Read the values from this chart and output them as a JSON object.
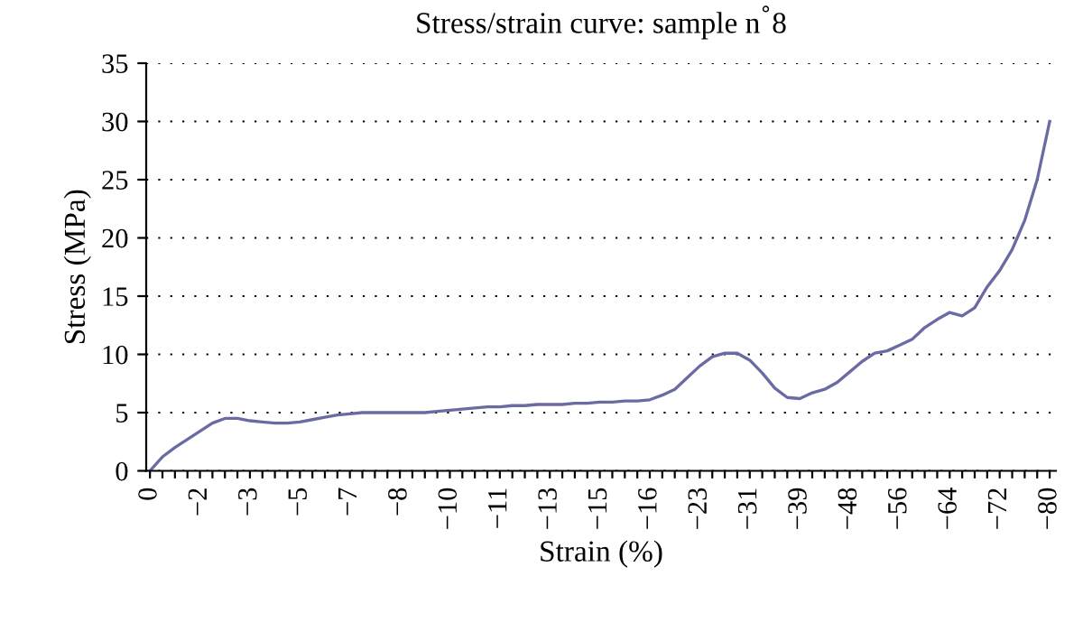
{
  "chart_data": {
    "type": "line",
    "title": "Stress/strain curve: sample n$^{°}$8",
    "xlabel": "Strain (%)",
    "ylabel": "Stress (MPa)",
    "categories": [
      "0",
      null,
      null,
      null,
      "−2",
      null,
      null,
      null,
      "−3",
      null,
      null,
      null,
      "−5",
      null,
      null,
      null,
      "−7",
      null,
      null,
      null,
      "−8",
      null,
      null,
      null,
      "−10",
      null,
      null,
      null,
      "−11",
      null,
      null,
      null,
      "−13",
      null,
      null,
      null,
      "−15",
      null,
      null,
      null,
      "−16",
      null,
      null,
      null,
      "−23",
      null,
      null,
      null,
      "−31",
      null,
      null,
      null,
      "−39",
      null,
      null,
      null,
      "−48",
      null,
      null,
      null,
      "−56",
      null,
      null,
      null,
      "−64",
      null,
      null,
      null,
      "−72",
      null,
      null,
      null,
      "−80"
    ],
    "series": [
      {
        "color": "#6b6ba3",
        "values": [
          0,
          1.2,
          2.0,
          2.7,
          3.4,
          4.1,
          4.5,
          4.5,
          4.3,
          4.2,
          4.1,
          4.1,
          4.2,
          4.4,
          4.6,
          4.8,
          4.9,
          5.0,
          5.0,
          5.0,
          5.0,
          5.0,
          5.0,
          5.1,
          5.2,
          5.3,
          5.4,
          5.5,
          5.5,
          5.6,
          5.6,
          5.7,
          5.7,
          5.7,
          5.8,
          5.8,
          5.9,
          5.9,
          6.0,
          6.0,
          6.1,
          6.5,
          7.0,
          8.0,
          9.0,
          9.8,
          10.1,
          10.1,
          9.5,
          8.4,
          7.1,
          6.3,
          6.2,
          6.7,
          7.0,
          7.6,
          8.5,
          9.4,
          10.1,
          10.3,
          10.8,
          11.3,
          12.3,
          13.0,
          13.6,
          13.3,
          14.0,
          15.8,
          17.2,
          19.0,
          21.5,
          25.0,
          30.0
        ]
      }
    ],
    "ylim": [
      0,
      35
    ],
    "yticks": [
      0,
      5,
      10,
      15,
      20,
      25,
      30,
      35
    ],
    "grid": "y",
    "marker": "none",
    "line_style": "solid",
    "legend": false
  }
}
